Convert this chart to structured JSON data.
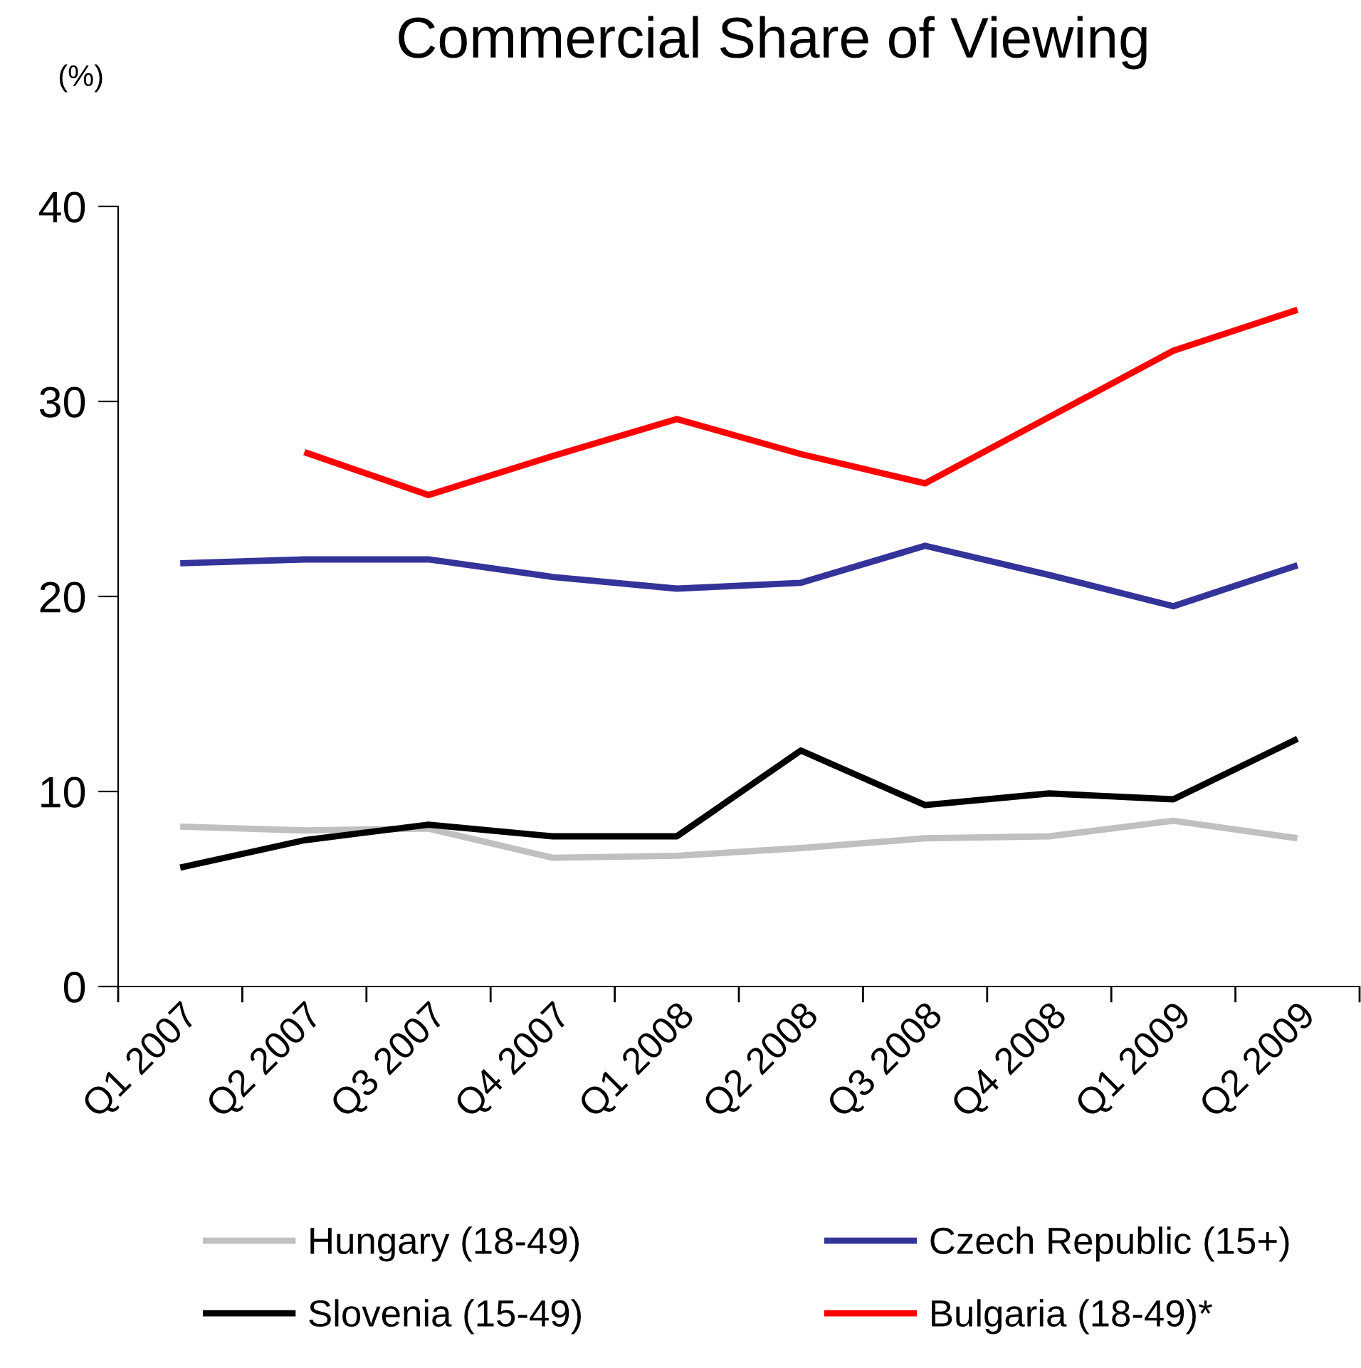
{
  "chart_data": {
    "type": "line",
    "title": "Commercial Share of Viewing",
    "ylabel": "(%)",
    "categories": [
      "Q1 2007",
      "Q2 2007",
      "Q3 2007",
      "Q4 2007",
      "Q1 2008",
      "Q2 2008",
      "Q3 2008",
      "Q4 2008",
      "Q1 2009",
      "Q2 2009"
    ],
    "series": [
      {
        "name": "Hungary (18-49)",
        "color": "#c0c0c0",
        "values": [
          8.2,
          8.0,
          8.1,
          6.6,
          6.7,
          7.1,
          7.6,
          7.7,
          8.5,
          7.6
        ]
      },
      {
        "name": "Czech Republic (15+)",
        "color": "#333399",
        "values": [
          21.7,
          21.9,
          21.9,
          21.0,
          20.4,
          20.7,
          22.6,
          21.1,
          19.5,
          21.6
        ]
      },
      {
        "name": "Slovenia (15-49)",
        "color": "#000000",
        "values": [
          6.1,
          7.5,
          8.3,
          7.7,
          7.7,
          12.1,
          9.3,
          9.9,
          9.6,
          12.7
        ]
      },
      {
        "name": "Bulgaria (18-49)*",
        "color": "#ff0000",
        "values": [
          null,
          27.4,
          25.2,
          27.2,
          29.1,
          27.3,
          25.8,
          29.2,
          32.6,
          34.7
        ]
      }
    ],
    "ylim": [
      0,
      40
    ],
    "yticks": [
      0,
      10,
      20,
      30,
      40
    ],
    "grid": false,
    "legend": "bottom",
    "marker": "none",
    "line_style": "solid"
  }
}
